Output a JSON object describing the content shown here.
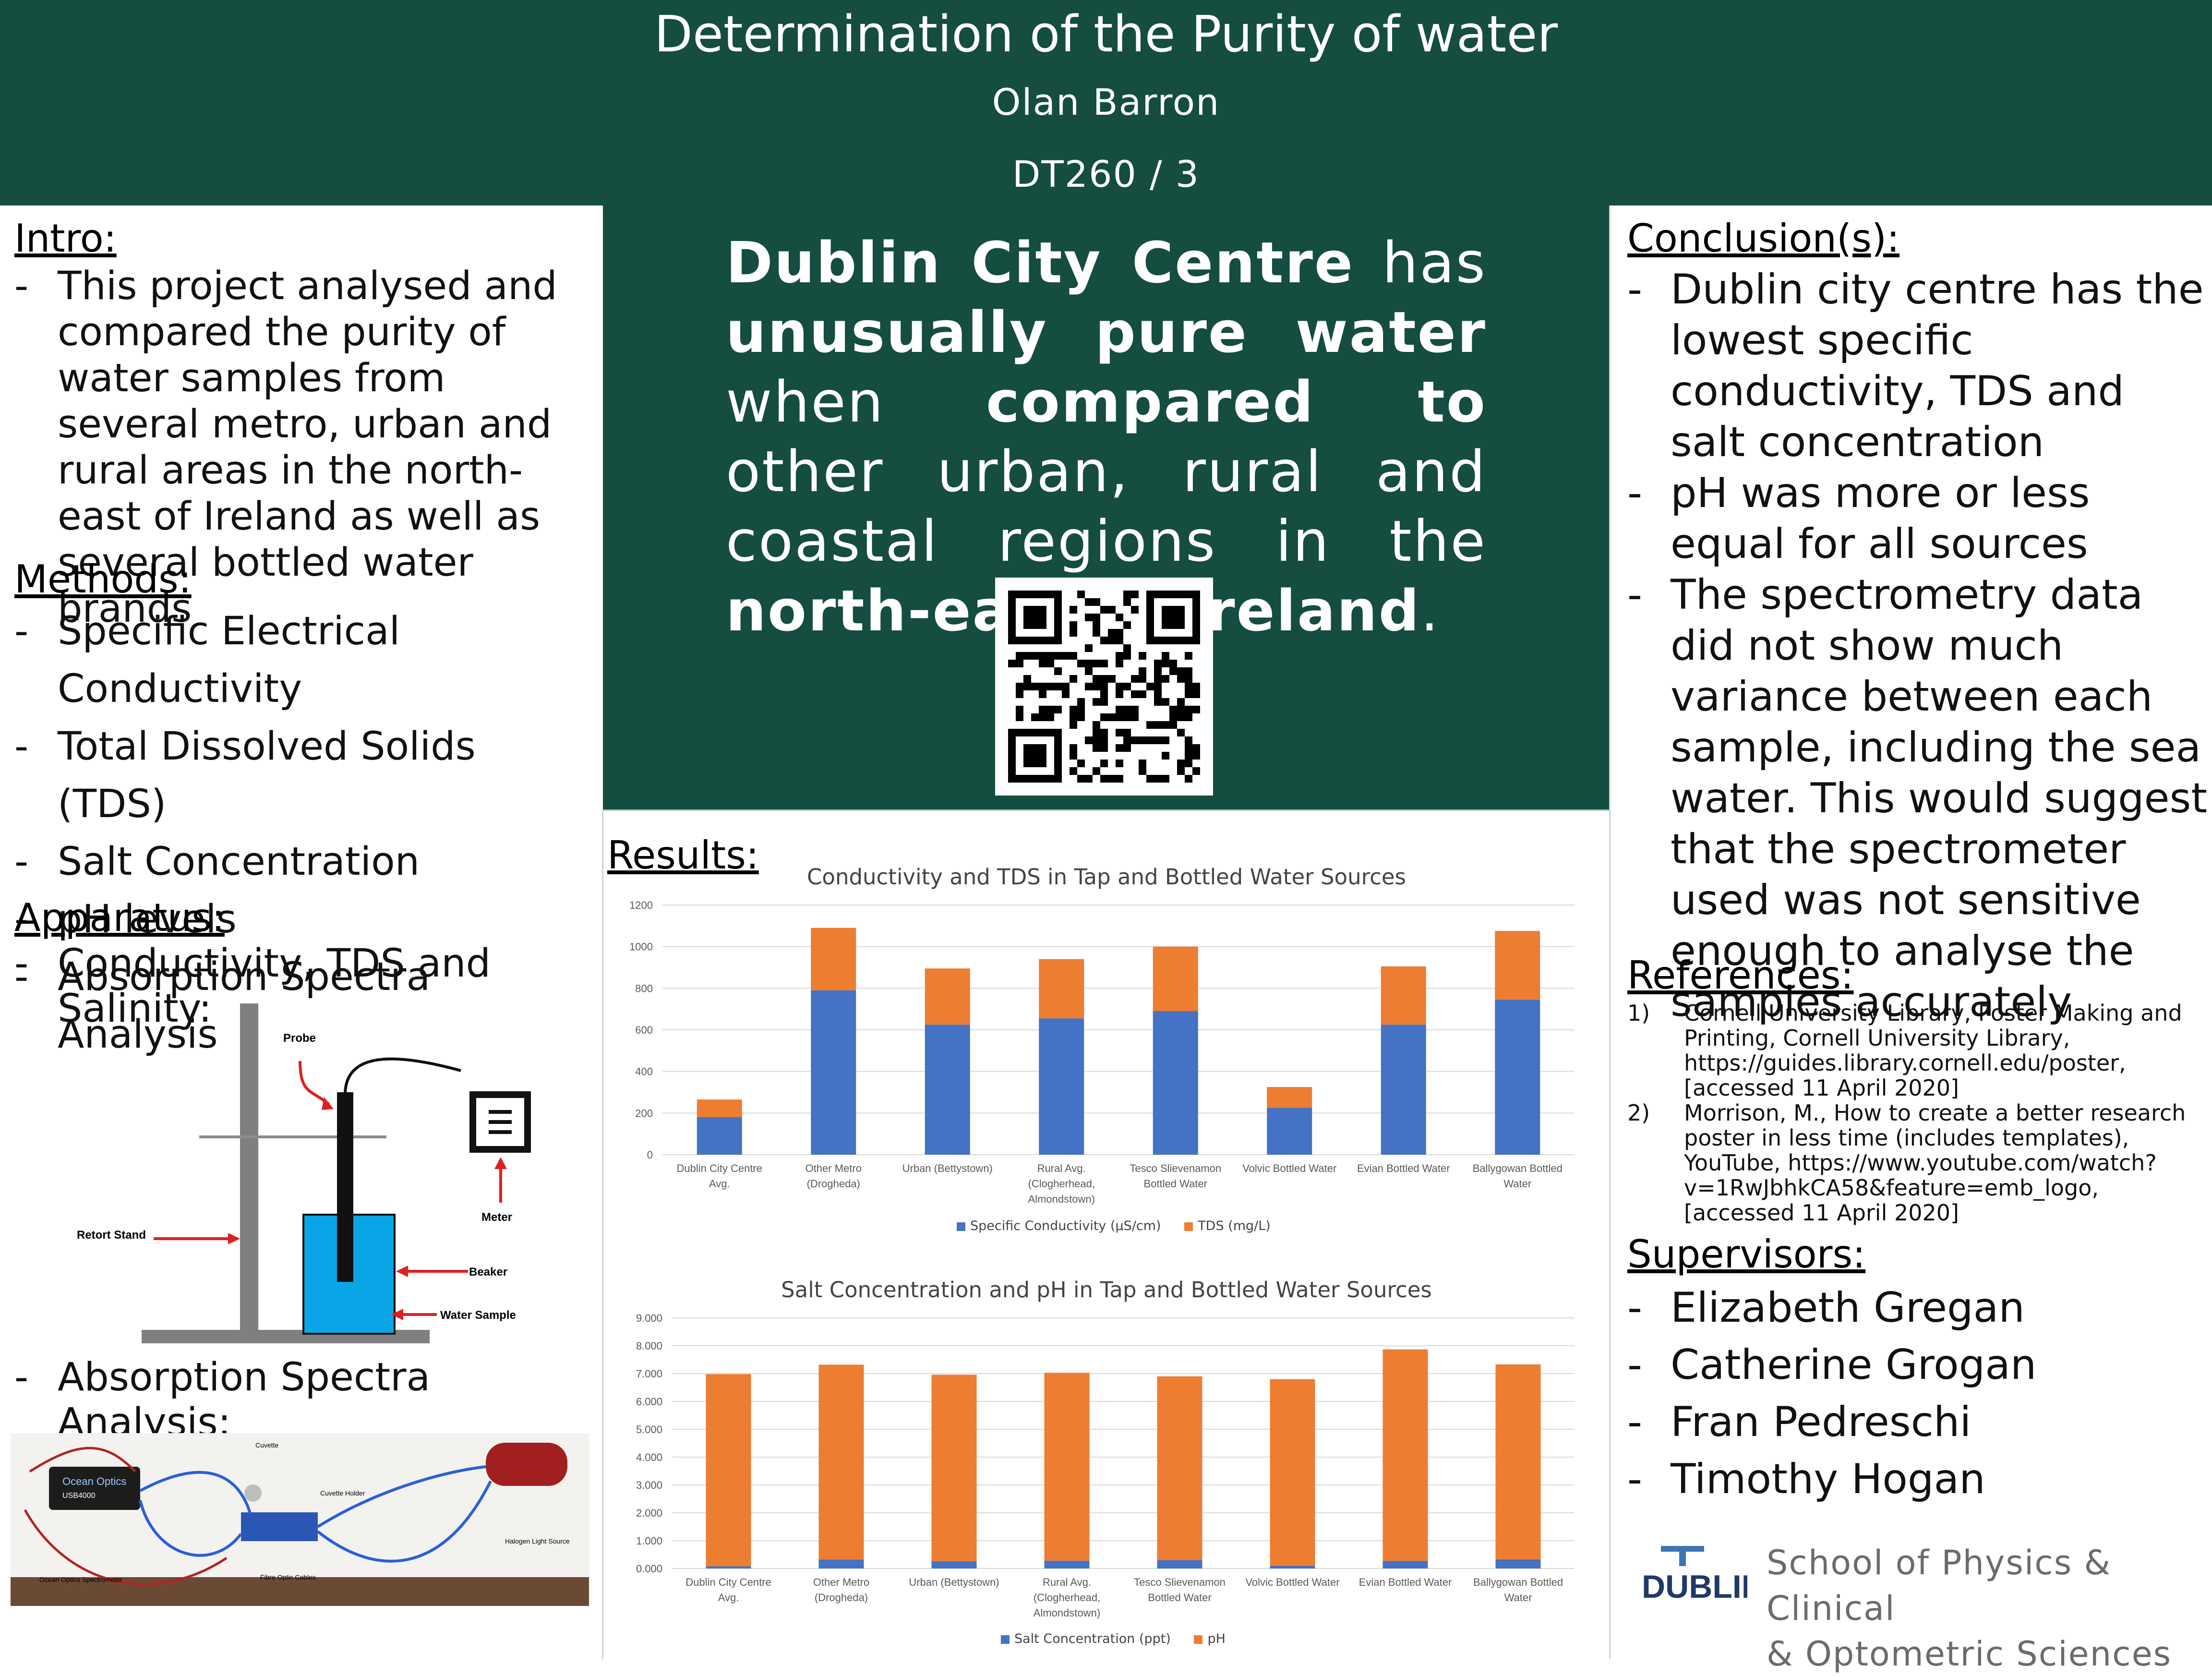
{
  "header": {
    "title": "Determination of the Purity of water",
    "author": "Olan Barron",
    "course": "DT260 / 3"
  },
  "headline": {
    "p1": "Dublin City Centre",
    "p2": " has ",
    "p3": "unusually pure water",
    "p4": " when ",
    "p5": "compared to",
    "p6": " other urban, rural and coastal regions in the ",
    "p7": "north-east of Ireland",
    "p8": "."
  },
  "intro": {
    "heading": "Intro:",
    "items": [
      "This project analysed and compared the purity of water samples from several metro, urban and rural areas in the north-east of Ireland as well as several bottled water brands"
    ]
  },
  "methods": {
    "heading": "Methods:",
    "items": [
      "Specific Electrical Conductivity",
      "Total Dissolved Solids (TDS)",
      "Salt Concentration",
      "pH levels",
      "Absorption Spectra Analysis"
    ]
  },
  "apparatus": {
    "heading": "Apparatus:",
    "item1": "Conductivity, TDS and Salinity:",
    "item2": "Absorption Spectra Analysis:",
    "diagram_labels": {
      "probe": "Probe",
      "meter": "Meter",
      "retort": "Retort Stand",
      "beaker": "Beaker",
      "water": "Water Sample"
    },
    "photo_labels": {
      "cuvette": "Cuvette",
      "cuvette_holder": "Cuvette Holder",
      "halogen": "Halogen Light Source",
      "spectrometer": "Ocean Optics Spectrometer",
      "fibre": "Fibre Optic Cables",
      "brand": "Ocean Optics",
      "model": "USB4000"
    }
  },
  "results": {
    "heading": "Results:"
  },
  "conclusions": {
    "heading": "Conclusion(s):",
    "items": [
      "Dublin city centre has the lowest specific conductivity, TDS and salt concentration",
      "pH was more or less equal for all sources",
      "The spectrometry data did not show much variance between each sample, including the sea water. This would suggest that the spectrometer used was not sensitive enough to analyse the samples accurately"
    ]
  },
  "references": {
    "heading": "References:",
    "items": [
      {
        "num": "1)",
        "text": "Cornell University Library, Poster Making and Printing, Cornell University Library, https://guides.library.cornell.edu/poster, [accessed 11 April 2020]"
      },
      {
        "num": "2)",
        "text": "Morrison, M., How to create a better research poster in less time (includes templates), YouTube, https://www.youtube.com/watch?v=1RwJbhkCA58&feature=emb_logo, [accessed 11 April 2020]"
      }
    ]
  },
  "supervisors": {
    "heading": "Supervisors:",
    "items": [
      "Elizabeth Gregan",
      "Catherine Grogan",
      "Fran Pedreschi",
      "Timothy Hogan"
    ]
  },
  "department": {
    "logo_text": "DUBLIN",
    "line1": "School of Physics & Clinical",
    "line2": "& Optometric Sciences"
  },
  "colors": {
    "header_green": "#154d40",
    "series_blue": "#4472c4",
    "series_orange": "#ed7d31"
  },
  "chart_data": [
    {
      "type": "bar",
      "stacked": true,
      "title": "Conductivity and TDS in Tap and Bottled Water Sources",
      "categories": [
        "Dublin City Centre Avg.",
        "Other Metro (Drogheda)",
        "Urban (Bettystown)",
        "Rural Avg. (Clogherhead, Almondstown)",
        "Tesco Slievenamon Bottled Water",
        "Volvic Bottled Water",
        "Evian Bottled Water",
        "Ballygowan Bottled Water"
      ],
      "series": [
        {
          "name": "Specific Conductivity (µS/cm)",
          "values": [
            180,
            790,
            625,
            655,
            690,
            225,
            625,
            745
          ]
        },
        {
          "name": "TDS (mg/L)",
          "values": [
            85,
            300,
            270,
            285,
            310,
            100,
            280,
            330
          ]
        }
      ],
      "yticks": [
        "0",
        "200",
        "400",
        "600",
        "800",
        "1000",
        "1200"
      ],
      "ylim": [
        0,
        1200
      ],
      "legend": "bottom"
    },
    {
      "type": "bar",
      "stacked": true,
      "title": "Salt Concentration and pH in Tap and Bottled Water Sources",
      "categories": [
        "Dublin City Centre Avg.",
        "Other Metro (Drogheda)",
        "Urban (Bettystown)",
        "Rural Avg. (Clogherhead, Almondstown)",
        "Tesco Slievenamon Bottled Water",
        "Volvic Bottled Water",
        "Evian Bottled Water",
        "Ballygowan Bottled Water"
      ],
      "series": [
        {
          "name": "Salt Concentration (ppt)",
          "values": [
            0.08,
            0.32,
            0.26,
            0.28,
            0.3,
            0.1,
            0.27,
            0.33
          ]
        },
        {
          "name": "pH",
          "values": [
            6.9,
            7.0,
            6.7,
            6.75,
            6.6,
            6.7,
            7.6,
            7.0
          ]
        }
      ],
      "yticks": [
        "0.000",
        "1.000",
        "2.000",
        "3.000",
        "4.000",
        "5.000",
        "6.000",
        "7.000",
        "8.000",
        "9.000"
      ],
      "ylim": [
        0,
        9
      ],
      "legend": "bottom"
    }
  ]
}
